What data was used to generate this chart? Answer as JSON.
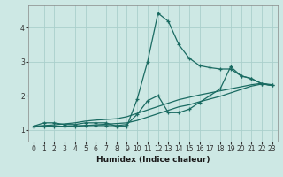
{
  "xlabel": "Humidex (Indice chaleur)",
  "xlim": [
    -0.5,
    23.5
  ],
  "ylim": [
    0.65,
    4.65
  ],
  "xticks": [
    0,
    1,
    2,
    3,
    4,
    5,
    6,
    7,
    8,
    9,
    10,
    11,
    12,
    13,
    14,
    15,
    16,
    17,
    18,
    19,
    20,
    21,
    22,
    23
  ],
  "yticks": [
    1,
    2,
    3,
    4
  ],
  "bg_color": "#cde8e4",
  "grid_color": "#aacfcc",
  "line_color": "#1a6b62",
  "lines": [
    {
      "x": [
        0,
        1,
        2,
        3,
        4,
        5,
        6,
        7,
        8,
        9,
        10,
        11,
        12,
        13,
        14,
        15,
        16,
        17,
        18,
        19,
        20,
        21,
        22,
        23
      ],
      "y": [
        1.1,
        1.2,
        1.2,
        1.15,
        1.15,
        1.2,
        1.2,
        1.2,
        1.1,
        1.1,
        1.9,
        3.0,
        4.42,
        4.18,
        3.5,
        3.1,
        2.88,
        2.82,
        2.78,
        2.78,
        2.58,
        2.5,
        2.35,
        2.3
      ],
      "marker": true
    },
    {
      "x": [
        0,
        1,
        2,
        3,
        4,
        5,
        6,
        7,
        8,
        9,
        10,
        11,
        12,
        13,
        14,
        15,
        16,
        17,
        18,
        19,
        20,
        21,
        22,
        23
      ],
      "y": [
        1.1,
        1.1,
        1.1,
        1.1,
        1.1,
        1.12,
        1.12,
        1.12,
        1.12,
        1.15,
        1.45,
        1.85,
        2.0,
        1.5,
        1.5,
        1.6,
        1.8,
        2.0,
        2.2,
        2.85,
        2.58,
        2.5,
        2.35,
        2.3
      ],
      "marker": true
    },
    {
      "x": [
        0,
        1,
        2,
        3,
        4,
        5,
        6,
        7,
        8,
        9,
        10,
        11,
        12,
        13,
        14,
        15,
        16,
        17,
        18,
        19,
        20,
        21,
        22,
        23
      ],
      "y": [
        1.1,
        1.12,
        1.14,
        1.17,
        1.2,
        1.25,
        1.28,
        1.3,
        1.32,
        1.38,
        1.48,
        1.58,
        1.68,
        1.78,
        1.88,
        1.95,
        2.02,
        2.08,
        2.14,
        2.2,
        2.26,
        2.32,
        2.36,
        2.32
      ],
      "marker": false
    },
    {
      "x": [
        0,
        1,
        2,
        3,
        4,
        5,
        6,
        7,
        8,
        9,
        10,
        11,
        12,
        13,
        14,
        15,
        16,
        17,
        18,
        19,
        20,
        21,
        22,
        23
      ],
      "y": [
        1.1,
        1.1,
        1.1,
        1.1,
        1.11,
        1.12,
        1.14,
        1.16,
        1.18,
        1.2,
        1.27,
        1.37,
        1.47,
        1.57,
        1.67,
        1.73,
        1.82,
        1.9,
        1.98,
        2.08,
        2.18,
        2.28,
        2.34,
        2.3
      ],
      "marker": false
    }
  ]
}
